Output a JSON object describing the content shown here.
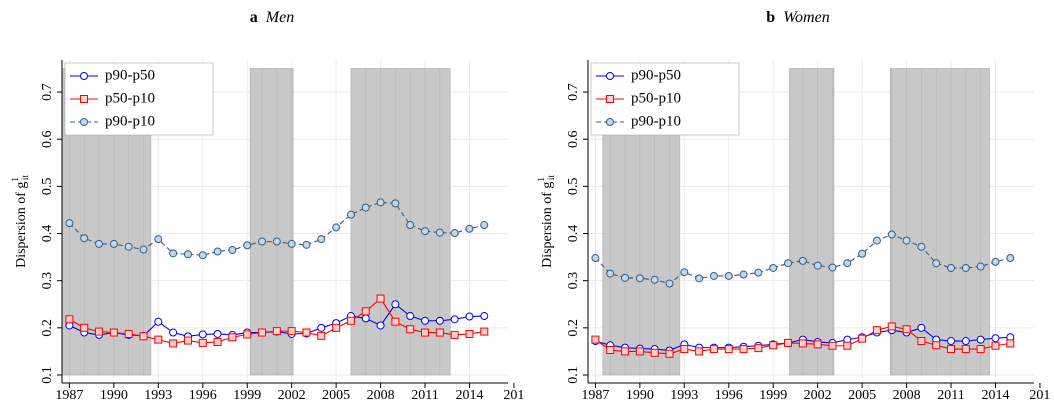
{
  "chart_data": [
    {
      "type": "line",
      "panel_label": "a",
      "title": "Men",
      "y_label": "Dispersion of g",
      "y_label_sup": "1",
      "y_label_sub": "it",
      "x": [
        1987,
        1988,
        1989,
        1990,
        1991,
        1992,
        1993,
        1994,
        1995,
        1996,
        1997,
        1998,
        1999,
        2000,
        2001,
        2002,
        2003,
        2004,
        2005,
        2006,
        2007,
        2008,
        2009,
        2010,
        2011,
        2012,
        2013,
        2014,
        2015
      ],
      "series": [
        {
          "name": "p90-p50",
          "color": "#0000ff",
          "marker": "circle",
          "dashed": false,
          "values": [
            0.205,
            0.19,
            0.185,
            0.19,
            0.185,
            0.183,
            0.213,
            0.19,
            0.182,
            0.186,
            0.187,
            0.185,
            0.19,
            0.19,
            0.192,
            0.187,
            0.188,
            0.2,
            0.21,
            0.225,
            0.22,
            0.205,
            0.25,
            0.225,
            0.215,
            0.215,
            0.218,
            0.224,
            0.225
          ]
        },
        {
          "name": "p50-p10",
          "color": "#ff0000",
          "marker": "square",
          "dashed": false,
          "values": [
            0.218,
            0.2,
            0.192,
            0.19,
            0.187,
            0.182,
            0.175,
            0.167,
            0.173,
            0.168,
            0.17,
            0.18,
            0.186,
            0.19,
            0.193,
            0.193,
            0.19,
            0.183,
            0.2,
            0.215,
            0.235,
            0.262,
            0.213,
            0.197,
            0.19,
            0.19,
            0.185,
            0.187,
            0.192
          ]
        },
        {
          "name": "p90-p10",
          "color": "#2f5f8a",
          "marker": "circle",
          "dashed": true,
          "values": [
            0.422,
            0.39,
            0.378,
            0.378,
            0.372,
            0.366,
            0.388,
            0.358,
            0.356,
            0.354,
            0.362,
            0.365,
            0.375,
            0.383,
            0.383,
            0.378,
            0.376,
            0.388,
            0.413,
            0.44,
            0.455,
            0.466,
            0.464,
            0.418,
            0.405,
            0.402,
            0.401,
            0.41,
            0.418
          ]
        }
      ],
      "shaded_x": [
        [
          1986.5,
          1992.5
        ],
        [
          1999.2,
          2002.1
        ],
        [
          2006,
          2012.7
        ]
      ],
      "shaded_y": [
        0.1,
        0.75
      ],
      "xlim": [
        1986.5,
        2016.6
      ],
      "ylim": [
        0.083,
        0.768
      ],
      "xticks": [
        1987,
        1990,
        1993,
        1996,
        1999,
        2002,
        2005,
        2008,
        2011,
        2014,
        {
          "value": 2017,
          "label": "201"
        }
      ],
      "yticks": [
        0.1,
        0.2,
        0.3,
        0.4,
        0.5,
        0.6,
        0.7
      ],
      "grid": true,
      "legend": "top-left"
    },
    {
      "type": "line",
      "panel_label": "b",
      "title": "Women",
      "y_label": "Dispersion of g",
      "y_label_sup": "1",
      "y_label_sub": "it",
      "x": [
        1987,
        1988,
        1989,
        1990,
        1991,
        1992,
        1993,
        1994,
        1995,
        1996,
        1997,
        1998,
        1999,
        2000,
        2001,
        2002,
        2003,
        2004,
        2005,
        2006,
        2007,
        2008,
        2009,
        2010,
        2011,
        2012,
        2013,
        2014,
        2015
      ],
      "series": [
        {
          "name": "p90-p50",
          "color": "#0000ff",
          "marker": "circle",
          "dashed": false,
          "values": [
            0.172,
            0.163,
            0.158,
            0.156,
            0.155,
            0.152,
            0.165,
            0.158,
            0.158,
            0.158,
            0.16,
            0.162,
            0.165,
            0.168,
            0.175,
            0.17,
            0.168,
            0.175,
            0.18,
            0.19,
            0.195,
            0.19,
            0.2,
            0.175,
            0.172,
            0.172,
            0.175,
            0.178,
            0.18
          ]
        },
        {
          "name": "p50-p10",
          "color": "#ff0000",
          "marker": "square",
          "dashed": false,
          "values": [
            0.175,
            0.153,
            0.15,
            0.15,
            0.147,
            0.145,
            0.155,
            0.15,
            0.155,
            0.155,
            0.155,
            0.157,
            0.163,
            0.168,
            0.167,
            0.165,
            0.162,
            0.162,
            0.177,
            0.195,
            0.203,
            0.197,
            0.172,
            0.163,
            0.155,
            0.155,
            0.155,
            0.162,
            0.167
          ]
        },
        {
          "name": "p90-p10",
          "color": "#2f5f8a",
          "marker": "circle",
          "dashed": true,
          "values": [
            0.348,
            0.315,
            0.306,
            0.305,
            0.302,
            0.294,
            0.318,
            0.305,
            0.31,
            0.31,
            0.313,
            0.317,
            0.327,
            0.337,
            0.342,
            0.332,
            0.328,
            0.337,
            0.357,
            0.385,
            0.398,
            0.385,
            0.372,
            0.337,
            0.327,
            0.327,
            0.33,
            0.34,
            0.348
          ]
        }
      ],
      "shaded_x": [
        [
          1987.5,
          1992.7
        ],
        [
          2000.1,
          2003.1
        ],
        [
          2006.9,
          2013.6
        ]
      ],
      "shaded_y": [
        0.1,
        0.75
      ],
      "xlim": [
        1986.5,
        2016.6
      ],
      "ylim": [
        0.083,
        0.768
      ],
      "xticks": [
        1987,
        1990,
        1993,
        1996,
        1999,
        2002,
        2005,
        2008,
        2011,
        2014,
        {
          "value": 2017,
          "label": "201"
        }
      ],
      "yticks": [
        0.1,
        0.2,
        0.3,
        0.4,
        0.5,
        0.6,
        0.7
      ],
      "grid": true,
      "legend": "top-left"
    }
  ]
}
